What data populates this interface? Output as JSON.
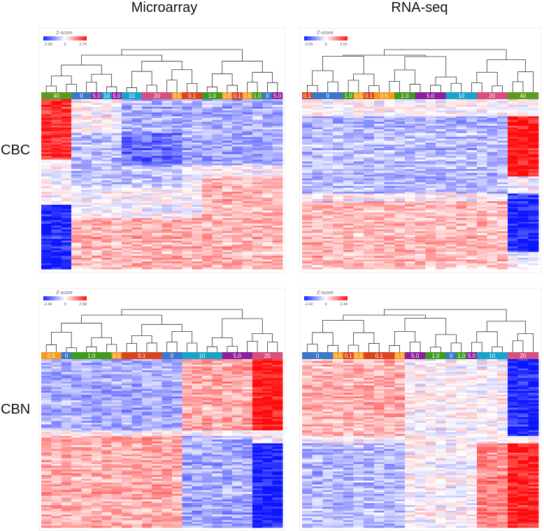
{
  "titles": {
    "left": "Microarray",
    "right": "RNA-seq"
  },
  "rows": {
    "top": "CBC",
    "bottom": "CBN"
  },
  "legend_label": "Z-score",
  "colors": {
    "0": "#3a78c9",
    "0.1": "#d9451e",
    "0.5": "#f59a1a",
    "1.0": "#3f9b1e",
    "5.0": "#8e1f9b",
    "10": "#1aa3c9",
    "20": "#d64f7f",
    "40": "#5a9a1c"
  },
  "panels": [
    {
      "id": "cbc-microarray",
      "z": {
        "min": "-2.58",
        "mid": "0",
        "max": "2.74"
      },
      "groups": [
        {
          "label": "40",
          "w": 3
        },
        {
          "label": "0",
          "w": 2
        },
        {
          "label": "5.0",
          "w": 1
        },
        {
          "label": "10",
          "w": 1
        },
        {
          "label": "5.0",
          "w": 1
        },
        {
          "label": "10",
          "w": 2
        },
        {
          "label": "20",
          "w": 3
        },
        {
          "label": "0.5",
          "w": 1
        },
        {
          "label": "0.1",
          "w": 2
        },
        {
          "label": "1.0",
          "w": 2
        },
        {
          "label": "0.5",
          "w": 1
        },
        {
          "label": "0.1",
          "w": 1
        },
        {
          "label": "0.5",
          "w": 1
        },
        {
          "label": "1.0",
          "w": 1
        },
        {
          "label": "0",
          "w": 1
        },
        {
          "label": "5.0",
          "w": 1
        }
      ],
      "blocks": [
        {
          "cols": [
            0,
            3
          ],
          "rows": [
            0,
            0.35
          ],
          "v": 0.85
        },
        {
          "cols": [
            0,
            3
          ],
          "rows": [
            0.62,
            1.0
          ],
          "v": -0.9
        },
        {
          "cols": [
            8,
            24
          ],
          "rows": [
            0,
            0.38
          ],
          "v": -0.35
        },
        {
          "cols": [
            3,
            14
          ],
          "rows": [
            0.2,
            0.52
          ],
          "v": -0.25
        },
        {
          "cols": [
            3,
            24
          ],
          "rows": [
            0.7,
            1.0
          ],
          "v": 0.3
        },
        {
          "cols": [
            16,
            24
          ],
          "rows": [
            0.45,
            0.7
          ],
          "v": 0.3
        }
      ]
    },
    {
      "id": "cbc-rnaseq",
      "z": {
        "min": "-2.55",
        "mid": "0",
        "max": "2.52"
      },
      "groups": [
        {
          "label": "0.1",
          "w": 1
        },
        {
          "label": "0",
          "w": 3
        },
        {
          "label": "1.0",
          "w": 1
        },
        {
          "label": "0.5",
          "w": 1
        },
        {
          "label": "0.1",
          "w": 1
        },
        {
          "label": "0.5",
          "w": 2
        },
        {
          "label": "1.0",
          "w": 2
        },
        {
          "label": "5.0",
          "w": 3
        },
        {
          "label": "10",
          "w": 3
        },
        {
          "label": "20",
          "w": 3
        },
        {
          "label": "40",
          "w": 3
        }
      ],
      "blocks": [
        {
          "cols": [
            20,
            23
          ],
          "rows": [
            0.1,
            0.45
          ],
          "v": 0.95
        },
        {
          "cols": [
            20,
            23
          ],
          "rows": [
            0.55,
            0.9
          ],
          "v": -0.9
        },
        {
          "cols": [
            0,
            20
          ],
          "rows": [
            0.1,
            0.55
          ],
          "v": -0.3
        },
        {
          "cols": [
            0,
            20
          ],
          "rows": [
            0.6,
            1.0
          ],
          "v": 0.3
        }
      ]
    },
    {
      "id": "cbn-microarray",
      "z": {
        "min": "-2.46",
        "mid": "0",
        "max": "2.58"
      },
      "groups": [
        {
          "label": "0.5",
          "w": 2
        },
        {
          "label": "0",
          "w": 1
        },
        {
          "label": "1.0",
          "w": 4
        },
        {
          "label": "0.5",
          "w": 1
        },
        {
          "label": "0.1",
          "w": 4
        },
        {
          "label": "0",
          "w": 2
        },
        {
          "label": "10",
          "w": 4
        },
        {
          "label": "5.0",
          "w": 3
        },
        {
          "label": "20",
          "w": 3
        }
      ],
      "blocks": [
        {
          "cols": [
            21,
            24
          ],
          "rows": [
            0.0,
            0.42
          ],
          "v": 0.95
        },
        {
          "cols": [
            21,
            24
          ],
          "rows": [
            0.5,
            1.0
          ],
          "v": -0.95
        },
        {
          "cols": [
            0,
            14
          ],
          "rows": [
            0.0,
            0.42
          ],
          "v": -0.35
        },
        {
          "cols": [
            0,
            14
          ],
          "rows": [
            0.45,
            1.0
          ],
          "v": 0.35
        },
        {
          "cols": [
            14,
            21
          ],
          "rows": [
            0.0,
            0.42
          ],
          "v": 0.35
        },
        {
          "cols": [
            14,
            21
          ],
          "rows": [
            0.45,
            1.0
          ],
          "v": -0.35
        }
      ]
    },
    {
      "id": "cbn-rnaseq",
      "z": {
        "min": "-2.42",
        "mid": "0",
        "max": "2.44"
      },
      "groups": [
        {
          "label": "0",
          "w": 3
        },
        {
          "label": "0.5",
          "w": 1
        },
        {
          "label": "0.1",
          "w": 1
        },
        {
          "label": "0.5",
          "w": 1
        },
        {
          "label": "0.1",
          "w": 3
        },
        {
          "label": "0.5",
          "w": 1
        },
        {
          "label": "5.0",
          "w": 2
        },
        {
          "label": "1.0",
          "w": 2
        },
        {
          "label": "0",
          "w": 1
        },
        {
          "label": "1.0",
          "w": 1
        },
        {
          "label": "5.0",
          "w": 1
        },
        {
          "label": "10",
          "w": 3
        },
        {
          "label": "20",
          "w": 3
        }
      ],
      "blocks": [
        {
          "cols": [
            20,
            23
          ],
          "rows": [
            0.0,
            0.45
          ],
          "v": -0.9
        },
        {
          "cols": [
            20,
            23
          ],
          "rows": [
            0.5,
            1.0
          ],
          "v": 0.9
        },
        {
          "cols": [
            0,
            10
          ],
          "rows": [
            0.0,
            0.45
          ],
          "v": 0.3
        },
        {
          "cols": [
            0,
            10
          ],
          "rows": [
            0.5,
            1.0
          ],
          "v": -0.3
        },
        {
          "cols": [
            17,
            20
          ],
          "rows": [
            0.5,
            1.0
          ],
          "v": 0.5
        }
      ]
    }
  ]
}
